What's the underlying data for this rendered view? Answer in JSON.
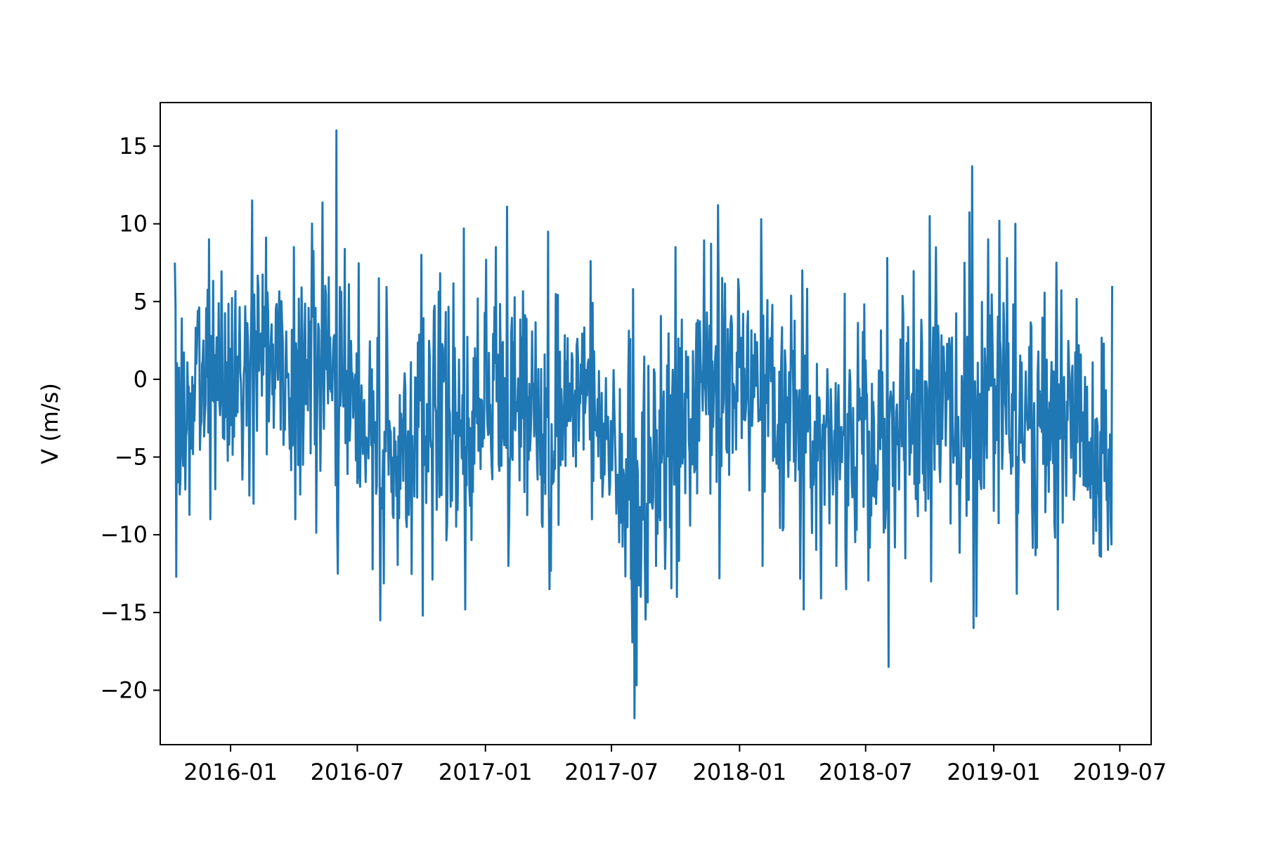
{
  "chart_data": {
    "type": "line",
    "title": "",
    "xlabel": "",
    "ylabel": "V (m/s)",
    "line_color": "#1f77b4",
    "grid": false,
    "legend": "none",
    "xlim": [
      "2015-09-22",
      "2019-08-15"
    ],
    "ylim": [
      -23.5,
      17.8
    ],
    "xticks": [
      {
        "label": "2016-01",
        "date": "2016-01-01"
      },
      {
        "label": "2016-07",
        "date": "2016-07-01"
      },
      {
        "label": "2017-01",
        "date": "2017-01-01"
      },
      {
        "label": "2017-07",
        "date": "2017-07-01"
      },
      {
        "label": "2018-01",
        "date": "2018-01-01"
      },
      {
        "label": "2018-07",
        "date": "2018-07-01"
      },
      {
        "label": "2019-01",
        "date": "2019-01-01"
      },
      {
        "label": "2019-07",
        "date": "2019-07-01"
      }
    ],
    "yticks": [
      {
        "label": "15",
        "value": 15
      },
      {
        "label": "10",
        "value": 10
      },
      {
        "label": "5",
        "value": 5
      },
      {
        "label": "0",
        "value": 0
      },
      {
        "label": "−5",
        "value": -5
      },
      {
        "label": "−10",
        "value": -10
      },
      {
        "label": "−15",
        "value": -15
      },
      {
        "label": "−20",
        "value": -20
      }
    ],
    "series": [
      {
        "name": "V",
        "x_start": "2015-10-13",
        "x_end": "2019-06-20",
        "step_days": 1,
        "summary": {
          "min": -21.8,
          "max": 16.0,
          "mean": -0.5
        },
        "envelope": [
          {
            "date": "2015-10-13",
            "upper": 7.5,
            "lower": -12.7
          },
          {
            "date": "2015-12-01",
            "upper": 9.0,
            "lower": -9.0
          },
          {
            "date": "2016-02-01",
            "upper": 11.5,
            "lower": -8.0
          },
          {
            "date": "2016-04-01",
            "upper": 8.5,
            "lower": -9.0
          },
          {
            "date": "2016-06-01",
            "upper": 16.0,
            "lower": -12.5
          },
          {
            "date": "2016-08-01",
            "upper": 6.5,
            "lower": -15.5
          },
          {
            "date": "2016-10-01",
            "upper": 8.0,
            "lower": -15.2
          },
          {
            "date": "2016-12-01",
            "upper": 9.7,
            "lower": -14.8
          },
          {
            "date": "2017-02-01",
            "upper": 11.1,
            "lower": -12.0
          },
          {
            "date": "2017-04-01",
            "upper": 9.5,
            "lower": -13.5
          },
          {
            "date": "2017-06-01",
            "upper": 7.6,
            "lower": -9.0
          },
          {
            "date": "2017-08-01",
            "upper": 5.8,
            "lower": -21.8
          },
          {
            "date": "2017-10-01",
            "upper": 8.5,
            "lower": -14.0
          },
          {
            "date": "2017-12-01",
            "upper": 11.2,
            "lower": -12.8
          },
          {
            "date": "2018-02-01",
            "upper": 10.3,
            "lower": -12.0
          },
          {
            "date": "2018-04-01",
            "upper": 7.0,
            "lower": -14.8
          },
          {
            "date": "2018-06-01",
            "upper": 5.5,
            "lower": -13.5
          },
          {
            "date": "2018-08-01",
            "upper": 7.8,
            "lower": -18.5
          },
          {
            "date": "2018-10-01",
            "upper": 10.5,
            "lower": -13.0
          },
          {
            "date": "2018-12-01",
            "upper": 13.7,
            "lower": -16.0
          },
          {
            "date": "2019-02-01",
            "upper": 10.0,
            "lower": -13.8
          },
          {
            "date": "2019-04-01",
            "upper": 7.5,
            "lower": -14.8
          },
          {
            "date": "2019-06-20",
            "upper": 6.0,
            "lower": -16.0
          }
        ]
      }
    ]
  }
}
